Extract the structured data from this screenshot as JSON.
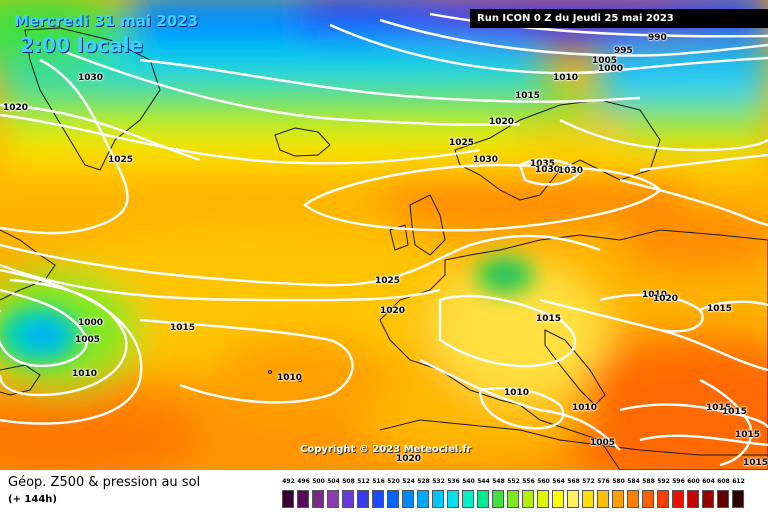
{
  "header": {
    "date_label": "Mercredi 31 mai 2023",
    "time_label": "2:00 locale",
    "run_label": "Run ICON 0 Z du Jeudi 25 mai 2023"
  },
  "copyright": "Copyright © 2023 Meteociel.fr",
  "product": {
    "title": "Géop. Z500 & pression au sol",
    "forecast_hour": "(+ 144h)"
  },
  "isobar_labels": [
    {
      "text": "990"
    },
    {
      "text": "995"
    },
    {
      "text": "1005"
    },
    {
      "text": "1000"
    },
    {
      "text": "1010"
    },
    {
      "text": "1015"
    },
    {
      "text": "1030"
    },
    {
      "text": "1020"
    },
    {
      "text": "1025"
    },
    {
      "text": "1020"
    },
    {
      "text": "1025"
    },
    {
      "text": "1030"
    },
    {
      "text": "1035"
    },
    {
      "text": "1030"
    },
    {
      "text": "1030"
    },
    {
      "text": "1025"
    },
    {
      "text": "1020"
    },
    {
      "text": "1015"
    },
    {
      "text": "1000"
    },
    {
      "text": "1005"
    },
    {
      "text": "1010"
    },
    {
      "text": "1015"
    },
    {
      "text": "1010"
    },
    {
      "text": "1010"
    },
    {
      "text": "1010"
    },
    {
      "text": "1005"
    },
    {
      "text": "1020"
    },
    {
      "text": "1010"
    },
    {
      "text": "1020"
    },
    {
      "text": "1015"
    },
    {
      "text": "1015"
    },
    {
      "text": "1015"
    },
    {
      "text": "1015"
    },
    {
      "text": "1015"
    }
  ],
  "legend": {
    "labels": [
      "492",
      "496",
      "500",
      "504",
      "508",
      "512",
      "516",
      "520",
      "524",
      "528",
      "532",
      "536",
      "540",
      "544",
      "548",
      "552",
      "556",
      "560",
      "564",
      "568",
      "572",
      "576",
      "580",
      "584",
      "588",
      "592",
      "596",
      "600",
      "604",
      "608",
      "612"
    ],
    "colors": [
      "#3a0034",
      "#5a0a5e",
      "#7a2a8a",
      "#8a3cb0",
      "#6a3ad8",
      "#3a3af0",
      "#1a4aff",
      "#0066ff",
      "#0088ff",
      "#00a8ff",
      "#00c8ff",
      "#00e0f0",
      "#00f0c8",
      "#00e890",
      "#40e040",
      "#80e820",
      "#b0f000",
      "#e0f800",
      "#ffff00",
      "#fff060",
      "#ffe000",
      "#ffc000",
      "#ffa000",
      "#ff8000",
      "#ff6000",
      "#ff3c00",
      "#f01000",
      "#c80000",
      "#960000",
      "#640000",
      "#300000"
    ]
  }
}
